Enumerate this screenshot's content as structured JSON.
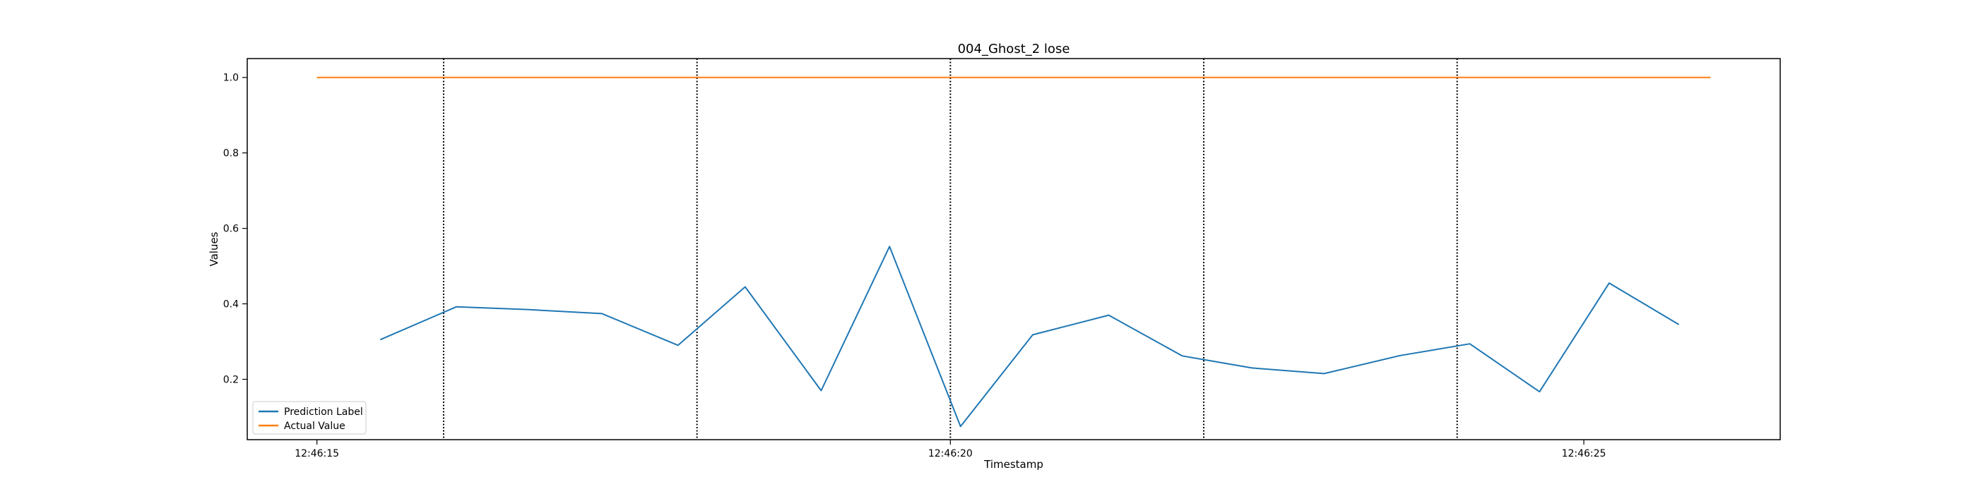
{
  "chart_data": {
    "type": "line",
    "title": "004_Ghost_2 lose",
    "xlabel": "Timestamp",
    "ylabel": "Values",
    "x_ticks": [
      "12:46:15",
      "12:46:20",
      "12:46:25"
    ],
    "y_ticks": [
      "0.2",
      "0.4",
      "0.6",
      "0.8",
      "1.0"
    ],
    "xlim": [
      "12:46:14.45",
      "12:46:26.55"
    ],
    "ylim": [
      0.04,
      1.05
    ],
    "grid": false,
    "legend_position": "lower left",
    "series": [
      {
        "name": "Prediction Label",
        "color": "#1f77b4",
        "x": [
          "12:46:15.5",
          "12:46:16.1",
          "12:46:16.65",
          "12:46:17.25",
          "12:46:17.85",
          "12:46:18.38",
          "12:46:18.98",
          "12:46:19.52",
          "12:46:20.08",
          "12:46:20.65",
          "12:46:21.25",
          "12:46:21.83",
          "12:46:22.38",
          "12:46:22.95",
          "12:46:23.55",
          "12:46:24.1",
          "12:46:24.65",
          "12:46:25.2",
          "12:46:25.75"
        ],
        "values": [
          0.305,
          0.392,
          0.385,
          0.374,
          0.29,
          0.445,
          0.17,
          0.552,
          0.075,
          0.318,
          0.37,
          0.262,
          0.23,
          0.215,
          0.263,
          0.294,
          0.167,
          0.455,
          0.345
        ]
      },
      {
        "name": "Actual Value",
        "color": "#ff7f0e",
        "x": [
          "12:46:15",
          "12:46:26"
        ],
        "values": [
          1.0,
          1.0
        ]
      }
    ],
    "vertical_lines": {
      "style": "dotted",
      "color": "#000000",
      "x": [
        "12:46:16",
        "12:46:18",
        "12:46:20",
        "12:46:22",
        "12:46:24"
      ]
    }
  }
}
